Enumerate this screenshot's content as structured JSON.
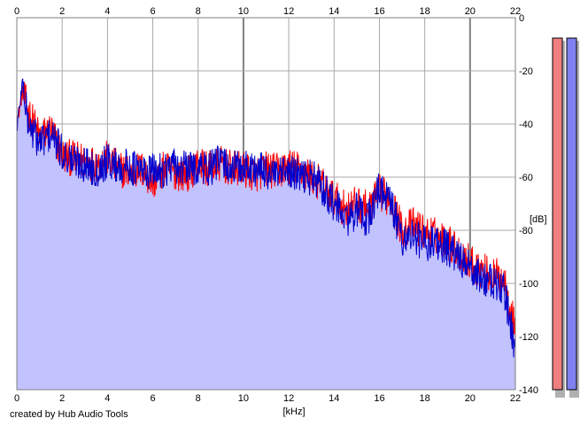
{
  "app": {
    "credit": "created by Hub Audio Tools"
  },
  "colors": {
    "fill": "#c2c2ff",
    "left_channel": "#ff0000",
    "right_channel": "#0000cc",
    "grid": "#a8a8a8",
    "meter_left": "#f08080",
    "meter_right": "#8080f0"
  },
  "chart_data": {
    "type": "line",
    "title": "",
    "xlabel": "[kHz]",
    "ylabel": "[dB]",
    "xlim": [
      0,
      22
    ],
    "ylim": [
      -140,
      0
    ],
    "x_ticks": [
      0,
      2,
      4,
      6,
      8,
      10,
      12,
      14,
      16,
      18,
      20,
      22
    ],
    "y_ticks": [
      0,
      -20,
      -40,
      -60,
      -80,
      -100,
      -120,
      -140
    ],
    "grid": true,
    "legend": "none",
    "series": [
      {
        "channel": "left",
        "color": "#ff0000",
        "x": [
          0,
          0.25,
          0.5,
          1,
          1.5,
          2,
          2.5,
          3,
          3.5,
          4,
          4.5,
          5,
          5.5,
          6,
          6.5,
          7,
          7.5,
          8,
          8.5,
          9,
          9.5,
          10,
          10.5,
          11,
          11.5,
          12,
          12.5,
          13,
          13.5,
          14,
          14.5,
          15,
          15.5,
          16,
          16.5,
          17,
          17.5,
          18,
          18.5,
          19,
          19.5,
          20,
          20.5,
          21,
          21.5,
          22
        ],
        "values": [
          -40,
          -28,
          -35,
          -45,
          -42,
          -52,
          -53,
          -54,
          -55,
          -53,
          -57,
          -58,
          -57,
          -62,
          -57,
          -58,
          -59,
          -55,
          -57,
          -55,
          -57,
          -57,
          -59,
          -57,
          -58,
          -56,
          -57,
          -60,
          -63,
          -68,
          -72,
          -70,
          -72,
          -66,
          -68,
          -80,
          -78,
          -81,
          -82,
          -84,
          -88,
          -92,
          -95,
          -97,
          -98,
          -118
        ]
      },
      {
        "channel": "right",
        "color": "#0000cc",
        "x": [
          0,
          0.25,
          0.5,
          1,
          1.5,
          2,
          2.5,
          3,
          3.5,
          4,
          4.5,
          5,
          5.5,
          6,
          6.5,
          7,
          7.5,
          8,
          8.5,
          9,
          9.5,
          10,
          10.5,
          11,
          11.5,
          12,
          12.5,
          13,
          13.5,
          14,
          14.5,
          15,
          15.5,
          16,
          16.5,
          17,
          17.5,
          18,
          18.5,
          19,
          19.5,
          20,
          20.5,
          21,
          21.5,
          22
        ],
        "values": [
          -42,
          -24,
          -40,
          -47,
          -44,
          -51,
          -54,
          -55,
          -57,
          -54,
          -56,
          -56,
          -58,
          -58,
          -57,
          -56,
          -57,
          -56,
          -57,
          -54,
          -57,
          -56,
          -57,
          -58,
          -60,
          -58,
          -60,
          -60,
          -64,
          -70,
          -76,
          -73,
          -76,
          -64,
          -70,
          -83,
          -82,
          -85,
          -84,
          -87,
          -90,
          -95,
          -98,
          -100,
          -102,
          -125
        ]
      }
    ]
  },
  "meters": [
    {
      "channel": "left",
      "level_db": -12
    },
    {
      "channel": "right",
      "level_db": -12
    }
  ]
}
